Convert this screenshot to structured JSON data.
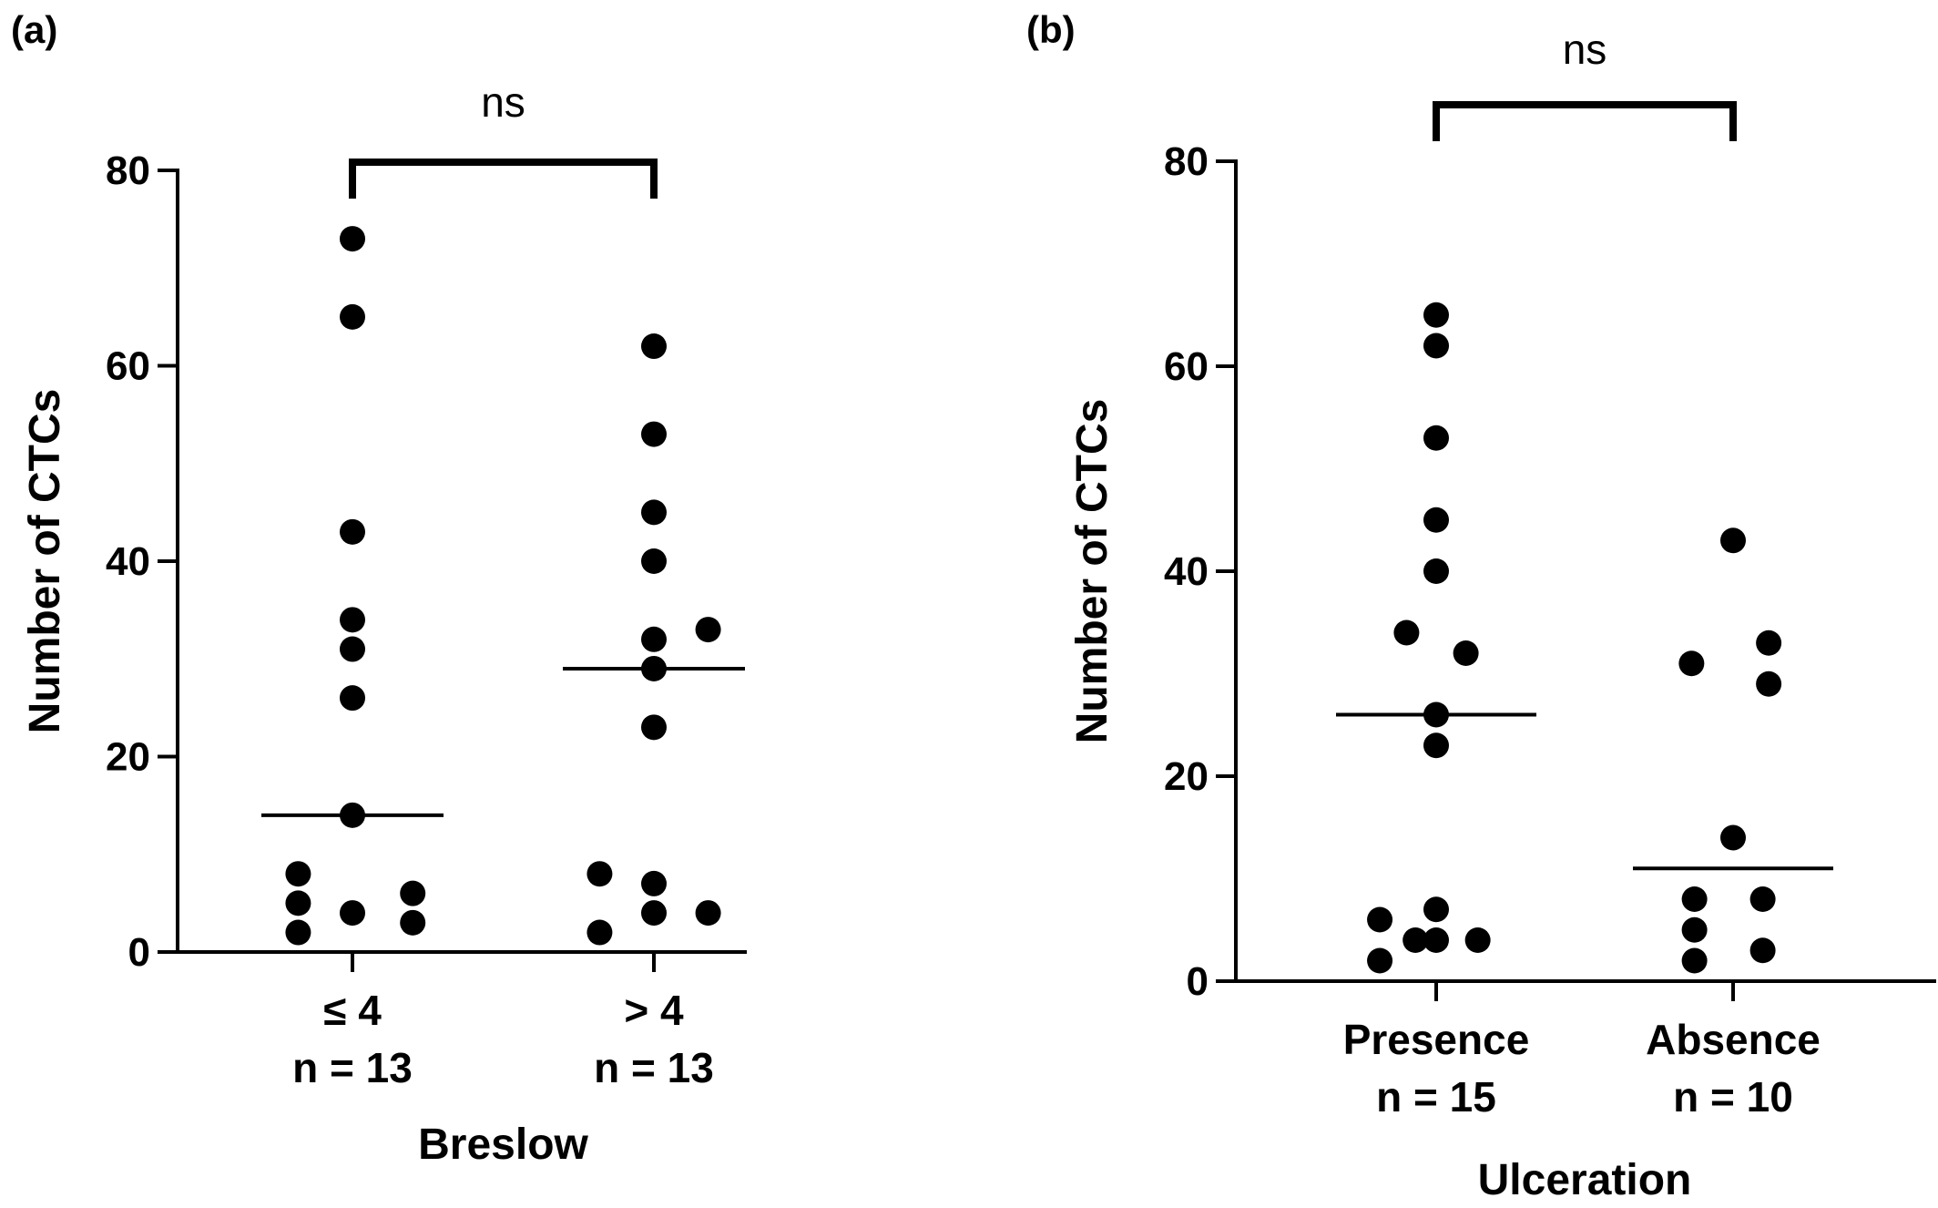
{
  "chart_data": [
    {
      "type": "scatter",
      "panel_label": "(a)",
      "ylabel": "Number of CTCs",
      "xlabel": "Breslow",
      "ylim": [
        0,
        80
      ],
      "yticks": [
        0,
        20,
        40,
        60,
        80
      ],
      "categories": [
        {
          "label": "≤ 4",
          "n_label": "n = 13"
        },
        {
          "label": "> 4",
          "n_label": "n = 13"
        }
      ],
      "series": [
        {
          "points": [
            {
              "x": 0,
              "y": 73
            },
            {
              "x": 0,
              "y": 65
            },
            {
              "x": 0,
              "y": 43
            },
            {
              "x": 0,
              "y": 34
            },
            {
              "x": 0,
              "y": 31
            },
            {
              "x": 0,
              "y": 26
            },
            {
              "x": 0,
              "y": 14
            },
            {
              "x": -0.18,
              "y": 8
            },
            {
              "x": -0.18,
              "y": 5
            },
            {
              "x": -0.18,
              "y": 2
            },
            {
              "x": 0,
              "y": 4
            },
            {
              "x": 0.2,
              "y": 6
            },
            {
              "x": 0.2,
              "y": 3
            }
          ],
          "median": 14
        },
        {
          "points": [
            {
              "x": 0,
              "y": 62
            },
            {
              "x": 0,
              "y": 53
            },
            {
              "x": 0,
              "y": 45
            },
            {
              "x": 0,
              "y": 40
            },
            {
              "x": 0.18,
              "y": 33
            },
            {
              "x": 0,
              "y": 32
            },
            {
              "x": 0,
              "y": 29
            },
            {
              "x": 0,
              "y": 23
            },
            {
              "x": -0.18,
              "y": 8
            },
            {
              "x": 0,
              "y": 7
            },
            {
              "x": 0,
              "y": 4
            },
            {
              "x": 0.18,
              "y": 4
            },
            {
              "x": -0.18,
              "y": 2
            }
          ],
          "median": 29
        }
      ],
      "significance": "ns"
    },
    {
      "type": "scatter",
      "panel_label": "(b)",
      "ylabel": "Number of CTCs",
      "xlabel": "Ulceration",
      "ylim": [
        0,
        80
      ],
      "yticks": [
        0,
        20,
        40,
        60,
        80
      ],
      "categories": [
        {
          "label": "Presence",
          "n_label": "n = 15"
        },
        {
          "label": "Absence",
          "n_label": "n = 10"
        }
      ],
      "series": [
        {
          "points": [
            {
              "x": 0,
              "y": 65
            },
            {
              "x": 0,
              "y": 62
            },
            {
              "x": 0,
              "y": 53
            },
            {
              "x": 0,
              "y": 45
            },
            {
              "x": 0,
              "y": 40
            },
            {
              "x": -0.1,
              "y": 34
            },
            {
              "x": 0.1,
              "y": 32
            },
            {
              "x": 0,
              "y": 26
            },
            {
              "x": 0,
              "y": 23
            },
            {
              "x": -0.19,
              "y": 6
            },
            {
              "x": 0,
              "y": 7
            },
            {
              "x": -0.07,
              "y": 4
            },
            {
              "x": 0,
              "y": 4
            },
            {
              "x": 0.14,
              "y": 4
            },
            {
              "x": -0.19,
              "y": 2
            }
          ],
          "median": 26
        },
        {
          "points": [
            {
              "x": 0,
              "y": 43
            },
            {
              "x": 0.12,
              "y": 33
            },
            {
              "x": -0.14,
              "y": 31
            },
            {
              "x": 0.12,
              "y": 29
            },
            {
              "x": 0,
              "y": 14
            },
            {
              "x": -0.13,
              "y": 8
            },
            {
              "x": 0.1,
              "y": 8
            },
            {
              "x": -0.13,
              "y": 5
            },
            {
              "x": 0.1,
              "y": 3
            },
            {
              "x": -0.13,
              "y": 2
            }
          ],
          "median": 11
        }
      ],
      "significance": "ns"
    }
  ]
}
